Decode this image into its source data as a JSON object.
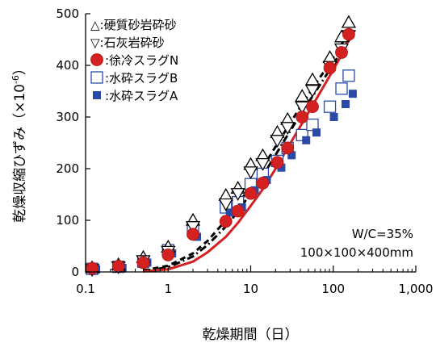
{
  "chart_data": {
    "type": "scatter",
    "title": "",
    "xlabel": "乾燥期間（日）",
    "ylabel_main": "乾燥収縮ひずみ（×10",
    "ylabel_sup": "-6",
    "ylabel_end": "）",
    "xscale": "log",
    "xlim": [
      0.1,
      1000
    ],
    "ylim": [
      0,
      500
    ],
    "xticks": [
      0.1,
      1,
      10,
      100,
      1000
    ],
    "xtick_labels": [
      "0.1",
      "1",
      "10",
      "100",
      "1,000"
    ],
    "yticks": [
      0,
      100,
      200,
      300,
      400,
      500
    ],
    "ytick_labels": [
      "0",
      "100",
      "200",
      "300",
      "400",
      "500"
    ],
    "grid": false,
    "legend_position": "top-left",
    "annotations": [
      "W/C=35%",
      "100×100×400mm"
    ],
    "series": [
      {
        "name": "△:硬質砂岩砕砂",
        "marker": "triangle-up-open",
        "color": "#000000",
        "x": [
          0.12,
          0.25,
          0.5,
          1,
          2,
          5,
          7,
          10,
          14,
          21,
          28,
          42,
          56,
          91,
          126,
          154
        ],
        "y": [
          8,
          14,
          28,
          48,
          100,
          148,
          162,
          208,
          225,
          270,
          295,
          340,
          372,
          415,
          455,
          483
        ]
      },
      {
        "name": "▽:石灰岩砕砂",
        "marker": "triangle-down-open",
        "color": "#000000",
        "x": [
          0.12,
          0.25,
          0.5,
          1,
          2,
          5,
          7,
          10,
          14,
          21,
          28,
          42,
          56,
          91,
          126,
          154
        ],
        "y": [
          5,
          10,
          22,
          40,
          88,
          132,
          152,
          194,
          210,
          255,
          280,
          320,
          352,
          398,
          432,
          458
        ]
      },
      {
        "name": "●:徐冷スラグN",
        "marker": "circle-filled",
        "color": "#d32020",
        "x": [
          0.12,
          0.25,
          0.5,
          1,
          2,
          5,
          7,
          10,
          14,
          21,
          28,
          42,
          56,
          91,
          126,
          154
        ],
        "y": [
          7,
          11,
          18,
          33,
          73,
          98,
          118,
          152,
          172,
          212,
          240,
          300,
          320,
          395,
          425,
          460
        ]
      },
      {
        "name": "□:水砕スラグB",
        "marker": "square-open",
        "color": "#2b4aa8",
        "x": [
          0.12,
          0.25,
          0.5,
          1,
          2,
          5,
          7,
          10,
          14,
          21,
          28,
          42,
          56,
          91,
          126,
          154
        ],
        "y": [
          6,
          10,
          20,
          42,
          80,
          125,
          135,
          170,
          190,
          215,
          240,
          265,
          285,
          320,
          355,
          380
        ]
      },
      {
        "name": "■:水砕スラグA",
        "marker": "square-filled",
        "color": "#2b4aa8",
        "x": [
          0.12,
          0.25,
          0.5,
          1,
          2,
          5,
          7,
          10,
          14,
          21,
          28,
          42,
          56,
          91,
          126,
          154
        ],
        "y": [
          5,
          8,
          18,
          36,
          68,
          115,
          125,
          158,
          178,
          202,
          226,
          255,
          270,
          300,
          325,
          345
        ]
      }
    ],
    "fit_lines": [
      {
        "style": "dash",
        "color": "#000000",
        "x": [
          0.5,
          1,
          2,
          3,
          5,
          7,
          10,
          14,
          21,
          28,
          42,
          56,
          91,
          126,
          154
        ],
        "y": [
          3,
          12,
          36,
          60,
          100,
          130,
          168,
          202,
          248,
          280,
          325,
          355,
          405,
          440,
          470
        ]
      },
      {
        "style": "dashdot",
        "color": "#000000",
        "x": [
          0.5,
          1,
          2,
          3,
          5,
          7,
          10,
          14,
          21,
          28,
          42,
          56,
          91,
          126,
          154
        ],
        "y": [
          2,
          9,
          30,
          52,
          88,
          117,
          153,
          186,
          232,
          265,
          310,
          340,
          392,
          428,
          458
        ]
      },
      {
        "style": "solid",
        "color": "#d32020",
        "x": [
          0.5,
          1,
          2,
          3,
          5,
          7,
          10,
          14,
          21,
          28,
          42,
          56,
          91,
          126,
          154
        ],
        "y": [
          1,
          5,
          20,
          38,
          68,
          95,
          128,
          160,
          205,
          240,
          288,
          322,
          380,
          420,
          452
        ]
      }
    ]
  }
}
